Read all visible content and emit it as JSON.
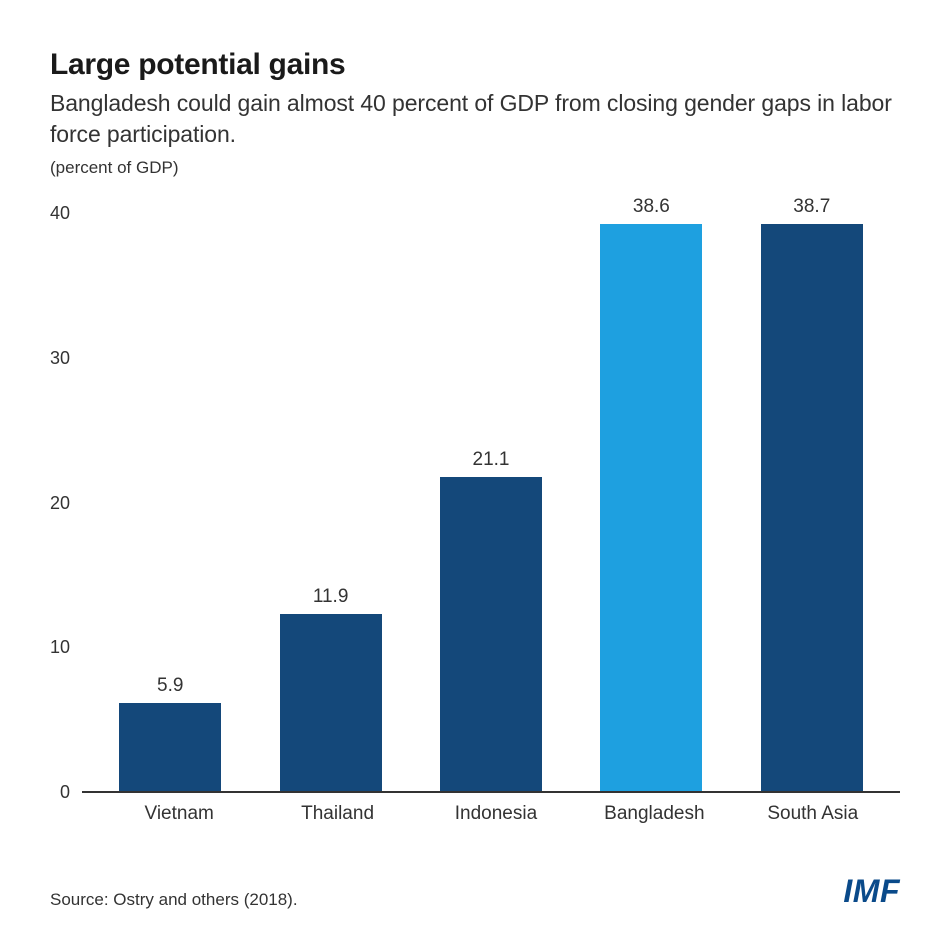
{
  "chart": {
    "type": "bar",
    "title": "Large potential gains",
    "subtitle": "Bangladesh could gain almost 40 percent of GDP from closing gender gaps in labor force participation.",
    "ylabel": "(percent of GDP)",
    "categories": [
      "Vietnam",
      "Thailand",
      "Indonesia",
      "Bangladesh",
      "South Asia"
    ],
    "values": [
      5.9,
      11.9,
      21.1,
      38.6,
      38.7
    ],
    "bar_colors": [
      "#14487a",
      "#14487a",
      "#14487a",
      "#1ea0e0",
      "#14487a"
    ],
    "ylim": [
      0,
      40
    ],
    "ytick_step": 10,
    "yticks": [
      "40",
      "30",
      "20",
      "10",
      "0"
    ],
    "background_color": "#ffffff",
    "axis_color": "#333333",
    "text_color": "#333333",
    "title_color": "#1a1a1a",
    "title_fontsize": 30,
    "subtitle_fontsize": 23,
    "label_fontsize": 19,
    "tick_fontsize": 18,
    "bar_width_pct": 68
  },
  "footer": {
    "source": "Source: Ostry and others (2018).",
    "logo_text": "IMF",
    "logo_color": "#0a4a8a"
  }
}
